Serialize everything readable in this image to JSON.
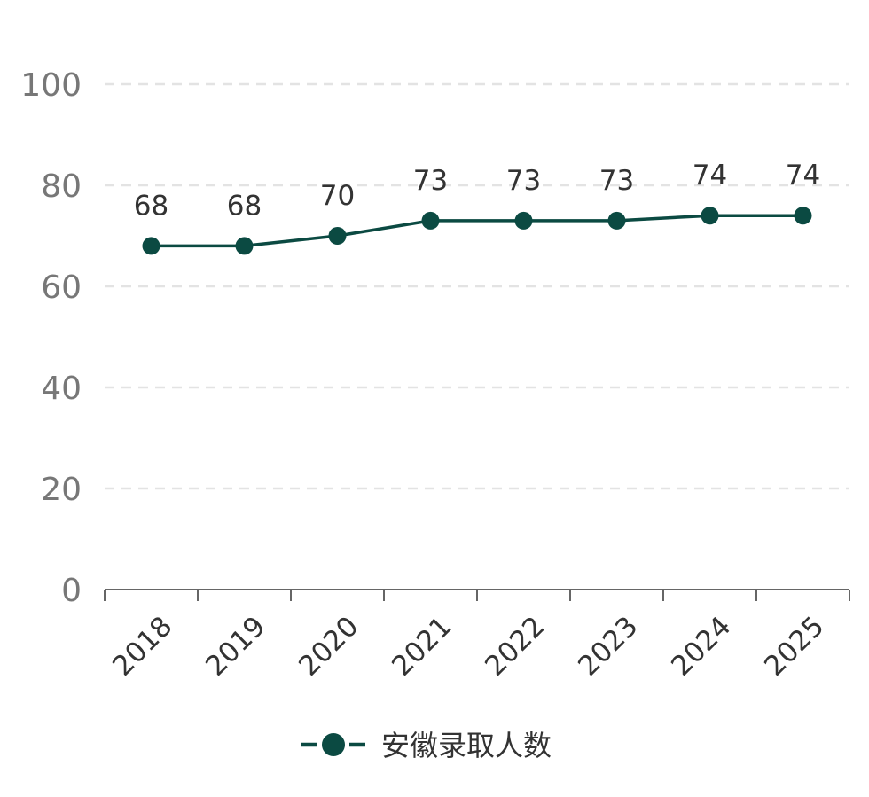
{
  "chart_data": {
    "type": "line",
    "categories": [
      "2018",
      "2019",
      "2020",
      "2021",
      "2022",
      "2023",
      "2024",
      "2025"
    ],
    "series": [
      {
        "name": "安徽录取人数",
        "values": [
          68,
          68,
          70,
          73,
          73,
          73,
          74,
          74
        ],
        "color": "#0b4a42"
      }
    ],
    "ylim": [
      0,
      100
    ],
    "yticks": [
      0,
      20,
      40,
      60,
      80,
      100
    ],
    "grid": true,
    "legend": "bottom-center",
    "data_labels": true
  }
}
